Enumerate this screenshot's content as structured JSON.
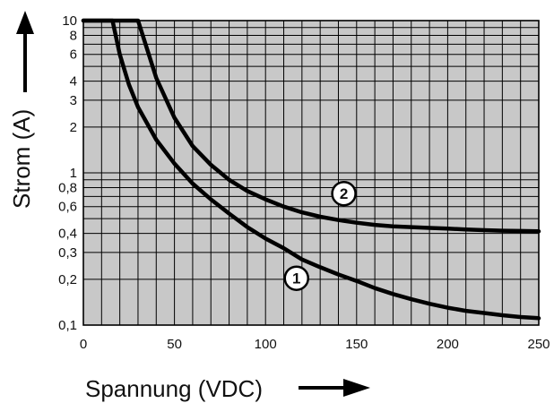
{
  "chart_data": {
    "type": "line",
    "xlabel": "Spannung (VDC)",
    "ylabel": "Strom (A)",
    "xlim": [
      0,
      250
    ],
    "ylim": [
      0.1,
      10
    ],
    "yscale": "log",
    "grid": true,
    "x_ticks": [
      0,
      50,
      100,
      150,
      200,
      250
    ],
    "x_tick_labels": [
      "0",
      "50",
      "100",
      "150",
      "200",
      "250"
    ],
    "x_grid_step": 10,
    "y_ticks": [
      0.1,
      0.2,
      0.3,
      0.4,
      0.6,
      0.8,
      1,
      2,
      3,
      4,
      6,
      8,
      10
    ],
    "y_tick_labels": [
      "0,1",
      "0,2",
      "0,3",
      "0,4",
      "0,6",
      "0,8",
      "1",
      "2",
      "3",
      "4",
      "6",
      "8",
      "10"
    ],
    "y_grid_lines": [
      0.1,
      0.2,
      0.3,
      0.4,
      0.5,
      0.6,
      0.7,
      0.8,
      0.9,
      1,
      2,
      3,
      4,
      5,
      6,
      7,
      8,
      9,
      10
    ],
    "series": [
      {
        "name": "1",
        "x": [
          0,
          16,
          20,
          25,
          30,
          40,
          50,
          60,
          70,
          80,
          90,
          100,
          110,
          120,
          130,
          140,
          150,
          160,
          170,
          180,
          190,
          200,
          210,
          220,
          230,
          240,
          250
        ],
        "y": [
          10,
          10,
          6,
          3.8,
          2.7,
          1.65,
          1.15,
          0.85,
          0.67,
          0.54,
          0.44,
          0.37,
          0.32,
          0.27,
          0.24,
          0.215,
          0.195,
          0.175,
          0.16,
          0.148,
          0.138,
          0.13,
          0.124,
          0.12,
          0.116,
          0.113,
          0.111
        ]
      },
      {
        "name": "2",
        "x": [
          0,
          30,
          35,
          40,
          50,
          60,
          70,
          80,
          90,
          100,
          110,
          120,
          130,
          140,
          150,
          160,
          170,
          180,
          190,
          200,
          210,
          220,
          230,
          240,
          250
        ],
        "y": [
          10,
          10,
          6.5,
          4.2,
          2.3,
          1.5,
          1.13,
          0.9,
          0.76,
          0.67,
          0.6,
          0.55,
          0.515,
          0.49,
          0.47,
          0.455,
          0.445,
          0.44,
          0.435,
          0.43,
          0.425,
          0.42,
          0.417,
          0.415,
          0.413
        ]
      }
    ]
  }
}
